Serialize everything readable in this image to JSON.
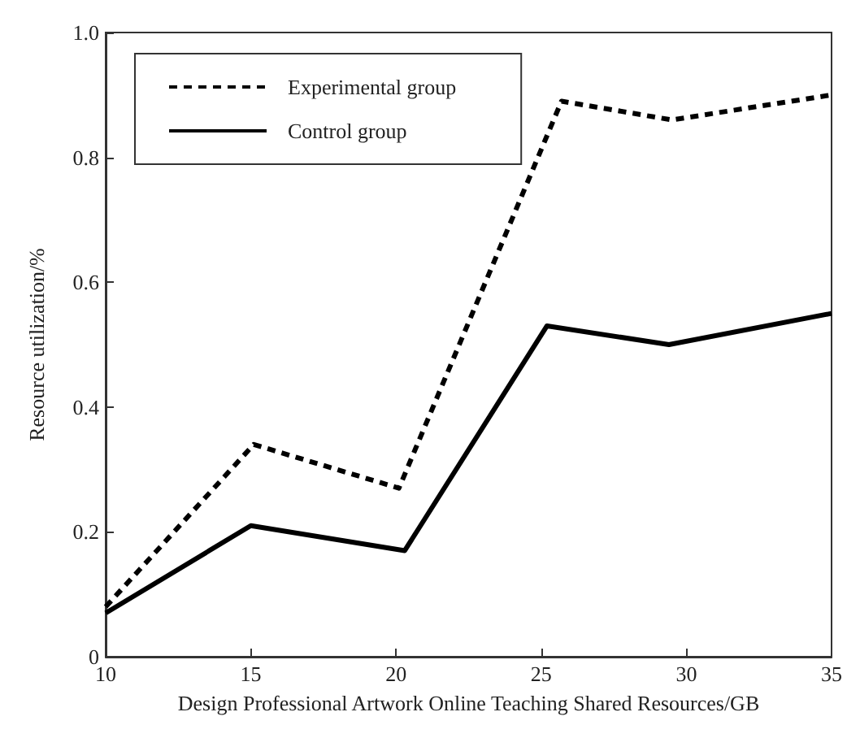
{
  "chart_data": {
    "type": "line",
    "xlabel": "Design Professional Artwork Online Teaching Shared Resources/GB",
    "ylabel": "Resource utilization/%",
    "xlim": [
      10,
      35
    ],
    "xticks": [
      10,
      15,
      20,
      25,
      30,
      35
    ],
    "ylim": [
      0,
      1
    ],
    "yticks": [
      0,
      {
        "value": 0.2,
        "label": "0.2"
      },
      {
        "value": 0.4,
        "label": "0.4"
      },
      {
        "value": 0.6,
        "label": "0.6"
      },
      {
        "value": 0.8,
        "label": "0.8"
      },
      {
        "value": 1,
        "label": "1.0"
      }
    ],
    "grid": false,
    "legend": "top left",
    "marker": "none",
    "series": [
      {
        "name": "Experimental group",
        "color": "#000000",
        "line_style": "dashed",
        "x": [
          10,
          15.1,
          20.1,
          25.7,
          29.5,
          35
        ],
        "values": [
          0.08,
          0.34,
          0.27,
          0.89,
          0.86,
          0.9
        ]
      },
      {
        "name": "Control group",
        "color": "#000000",
        "line_style": "solid",
        "x": [
          10,
          15,
          20.3,
          25.2,
          29.4,
          35
        ],
        "values": [
          0.07,
          0.21,
          0.17,
          0.53,
          0.5,
          0.55
        ]
      }
    ]
  }
}
